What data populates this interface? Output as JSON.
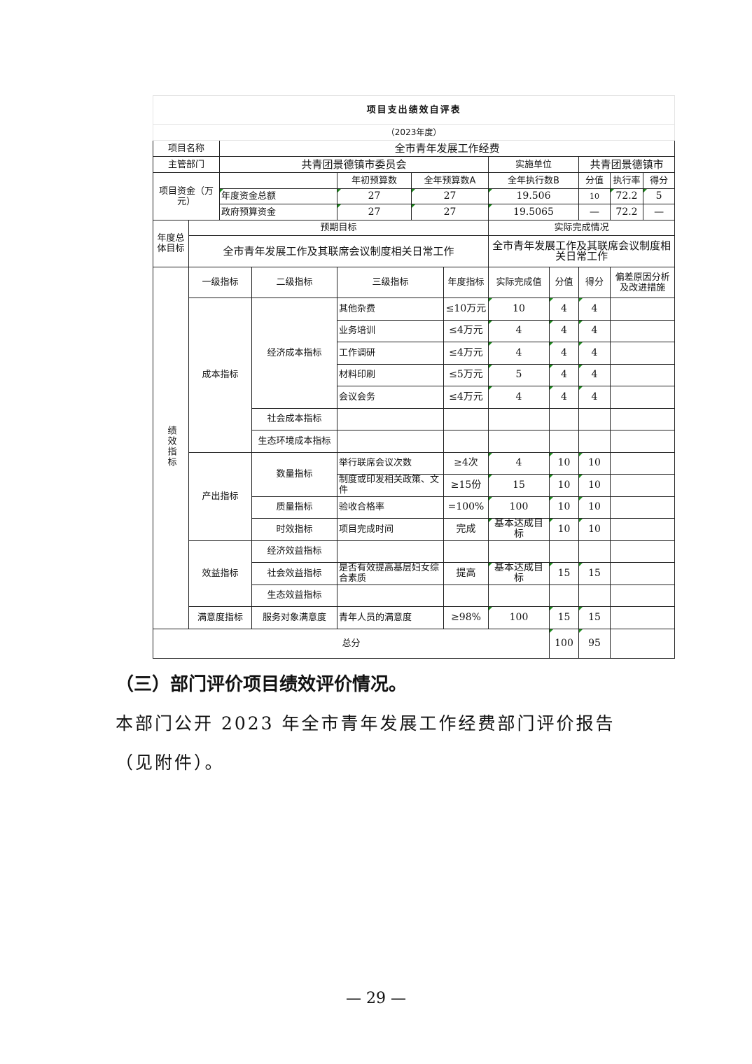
{
  "table": {
    "title": "项目支出绩效自评表",
    "year": "（2023年度）",
    "project_name_label": "项目名称",
    "project_name": "全市青年发展工作经费",
    "dept_label": "主管部门",
    "dept": "共青团景德镇市委员会",
    "impl_label": "实施单位",
    "impl": "共青团景德镇市",
    "funds": {
      "label": "项目资金（万元）",
      "headers": [
        "年初预算数",
        "全年预算数A",
        "全年执行数B",
        "分值",
        "执行率",
        "得分"
      ],
      "rows": [
        {
          "name": "年度资金总额",
          "values": [
            "27",
            "27",
            "19.506",
            "10",
            "72.2",
            "5"
          ]
        },
        {
          "name": "政府预算资金",
          "values": [
            "27",
            "27",
            "19.5065",
            "—",
            "72.2",
            "—"
          ]
        }
      ]
    },
    "goal": {
      "label": "年度总体目标",
      "expected_label": "预期目标",
      "actual_label": "实际完成情况",
      "expected": "全市青年发展工作及其联席会议制度相关日常工作",
      "actual": "全市青年发展工作及其联席会议制度相关日常工作"
    },
    "indicators": {
      "label": "绩效指标",
      "headers": [
        "一级指标",
        "二级指标",
        "三级指标",
        "年度指标",
        "实际完成值",
        "分值",
        "得分",
        "偏差原因分析及改进措施"
      ],
      "groups": [
        {
          "name": "成本指标",
          "subs": [
            {
              "name": "经济成本指标",
              "items": [
                [
                  "其他杂费",
                  "≤10万元",
                  "10",
                  "4",
                  "4"
                ],
                [
                  "业务培训",
                  "≤4万元",
                  "4",
                  "4",
                  "4"
                ],
                [
                  "工作调研",
                  "≤4万元",
                  "4",
                  "4",
                  "4"
                ],
                [
                  "材料印刷",
                  "≤5万元",
                  "5",
                  "4",
                  "4"
                ],
                [
                  "会议会务",
                  "≤4万元",
                  "4",
                  "4",
                  "4"
                ]
              ]
            },
            {
              "name": "社会成本指标",
              "items": [
                [
                  "",
                  "",
                  "",
                  "",
                  ""
                ]
              ]
            },
            {
              "name": "生态环境成本指标",
              "items": [
                [
                  "",
                  "",
                  "",
                  "",
                  ""
                ]
              ]
            }
          ]
        },
        {
          "name": "产出指标",
          "subs": [
            {
              "name": "数量指标",
              "items": [
                [
                  "举行联席会议次数",
                  "≥4次",
                  "4",
                  "10",
                  "10"
                ],
                [
                  "制度或印发相关政策、文件",
                  "≥15份",
                  "15",
                  "10",
                  "10"
                ]
              ]
            },
            {
              "name": "质量指标",
              "items": [
                [
                  "验收合格率",
                  "=100%",
                  "100",
                  "10",
                  "10"
                ]
              ]
            },
            {
              "name": "时效指标",
              "items": [
                [
                  "项目完成时间",
                  "完成",
                  "基本达成目标",
                  "10",
                  "10"
                ]
              ]
            }
          ]
        },
        {
          "name": "效益指标",
          "subs": [
            {
              "name": "经济效益指标",
              "items": [
                [
                  "",
                  "",
                  "",
                  "",
                  ""
                ]
              ]
            },
            {
              "name": "社会效益指标",
              "items": [
                [
                  "是否有效提高基层妇女综合素质",
                  "提高",
                  "基本达成目标",
                  "15",
                  "15"
                ]
              ]
            },
            {
              "name": "生态效益指标",
              "items": [
                [
                  "",
                  "",
                  "",
                  "",
                  ""
                ]
              ]
            }
          ]
        },
        {
          "name": "满意度指标",
          "subs": [
            {
              "name": "服务对象满意度",
              "items": [
                [
                  "青年人员的满意度",
                  "≥98%",
                  "100",
                  "15",
                  "15"
                ]
              ]
            }
          ]
        }
      ]
    },
    "total_label": "总分",
    "total_max": "100",
    "total_score": "95"
  },
  "section_heading": "（三）部门评价项目绩效评价情况。",
  "paragraph_line1": "本部门公开 2023 年全市青年发展工作经费部门评价报告",
  "paragraph_line2": "（见附件）。",
  "page_number": "— 29 —"
}
